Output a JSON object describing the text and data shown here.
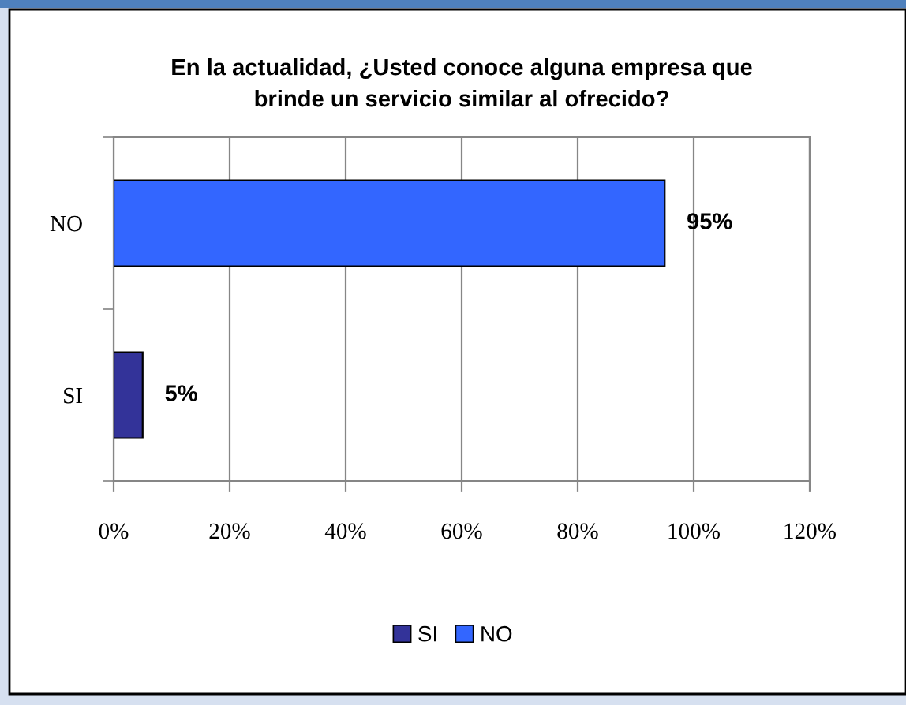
{
  "chart_data": {
    "type": "bar",
    "orientation": "horizontal",
    "title": "En la actualidad, ¿Usted conoce alguna empresa que\nbrinde un servicio similar al ofrecido?",
    "categories": [
      "NO",
      "SI"
    ],
    "series": [
      {
        "name": "SI",
        "color": "#333399",
        "values": [
          null,
          5
        ],
        "value_labels": [
          null,
          "5%"
        ]
      },
      {
        "name": "NO",
        "color": "#3366ff",
        "values": [
          95,
          null
        ],
        "value_labels": [
          "95%",
          null
        ]
      }
    ],
    "xlim": [
      0,
      120
    ],
    "xticks": [
      {
        "value": 0,
        "label": "0%"
      },
      {
        "value": 20,
        "label": "20%"
      },
      {
        "value": 40,
        "label": "40%"
      },
      {
        "value": 60,
        "label": "60%"
      },
      {
        "value": 80,
        "label": "80%"
      },
      {
        "value": 100,
        "label": "100%"
      },
      {
        "value": 120,
        "label": "120%"
      }
    ],
    "grid": "x",
    "legend": "bottom"
  }
}
